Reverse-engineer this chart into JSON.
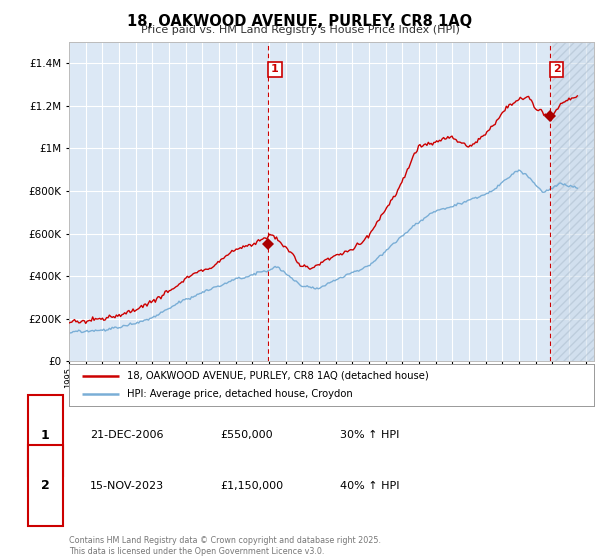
{
  "title": "18, OAKWOOD AVENUE, PURLEY, CR8 1AQ",
  "subtitle": "Price paid vs. HM Land Registry's House Price Index (HPI)",
  "background_color": "#ffffff",
  "plot_bg_color": "#dce8f5",
  "grid_color": "#ffffff",
  "line_color_red": "#cc0000",
  "line_color_blue": "#7aaed6",
  "vline_color": "#cc0000",
  "marker_color": "#aa0000",
  "hatch_color": "#bbccdd",
  "sale1_year": 2006.97,
  "sale1_price": 550000,
  "sale2_year": 2023.88,
  "sale2_price": 1150000,
  "legend_label_red": "18, OAKWOOD AVENUE, PURLEY, CR8 1AQ (detached house)",
  "legend_label_blue": "HPI: Average price, detached house, Croydon",
  "annotation1_date": "21-DEC-2006",
  "annotation1_price": "£550,000",
  "annotation1_hpi": "30% ↑ HPI",
  "annotation2_date": "15-NOV-2023",
  "annotation2_price": "£1,150,000",
  "annotation2_hpi": "40% ↑ HPI",
  "copyright": "Contains HM Land Registry data © Crown copyright and database right 2025.\nThis data is licensed under the Open Government Licence v3.0.",
  "ylim": [
    0,
    1500000
  ],
  "xlim_start": 1995,
  "xlim_end": 2026.5
}
